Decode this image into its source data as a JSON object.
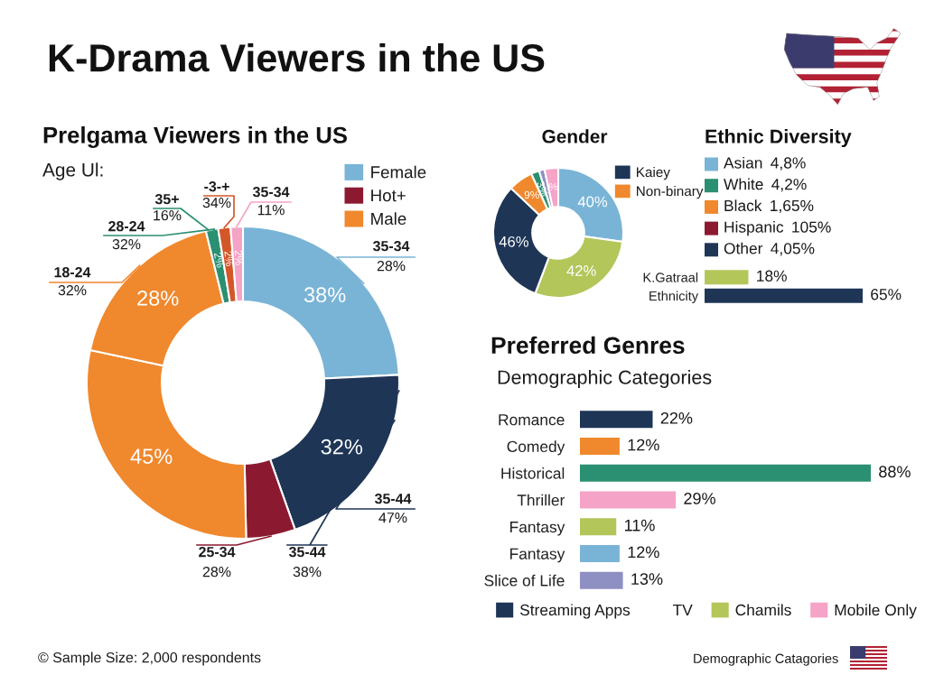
{
  "chart_data": [
    {
      "type": "other",
      "title": "K-Drama Viewers in the US",
      "annotations": [
        "© Sample Size: 2,000 respondents",
        "Demographic Catagories"
      ]
    },
    {
      "type": "donut",
      "title": "Prelgama Viewers in the US",
      "subtitle": "Age Ul:",
      "categories": [
        "Female",
        null,
        "Hot+",
        "Male",
        null,
        null,
        null,
        null
      ],
      "values": [
        38,
        32,
        8,
        45,
        28,
        2,
        2,
        2
      ],
      "colors": [
        "#79b4d6",
        "#1e3556",
        "#8b1a30",
        "#f0882d",
        "#f0882d",
        "#2b8f72",
        "#d4572a",
        "#f5a3c7"
      ],
      "value_labels": [
        "38%",
        "32%",
        null,
        "45%",
        "28%",
        "2%",
        "2%",
        "2%"
      ],
      "legend": "top right",
      "annotations": [
        "35-34\n11%",
        "35-34\n28%",
        "35-44\n47%",
        "35-44\n38%",
        "25-34\n28%",
        "18-24\n32%",
        "28-24\n32%",
        "35+\n16%",
        "-3-+\n34%"
      ]
    },
    {
      "type": "donut",
      "title": "Gender",
      "categories": [
        null,
        null,
        "Kaiey",
        "Non-binary",
        null,
        null,
        null
      ],
      "values": [
        40,
        42,
        46,
        9,
        3,
        2,
        5
      ],
      "colors": [
        "#79b4d6",
        "#b3c65a",
        "#1e3556",
        "#f0882d",
        "#2b8f72",
        "#8e8fc2",
        "#f5a3c7"
      ],
      "value_labels": [
        "40%",
        "42%",
        "46%",
        "9%",
        "3%",
        null,
        "%"
      ],
      "legend": "top right"
    },
    {
      "type": "other",
      "title": "Ethnic Diversity",
      "categories": [
        "Asian",
        "White",
        "Black",
        "Hispanic",
        "Other"
      ],
      "colors": [
        "#79b4d6",
        "#2b8f72",
        "#f0882d",
        "#8b1a30",
        "#1e3556"
      ],
      "value_labels": [
        "4,8%",
        "4,2%",
        "1,65%",
        "105%",
        "4,05%"
      ]
    },
    {
      "type": "bar",
      "orientation": "horizontal",
      "tick_labels": "y",
      "categories": [
        "K.Gatraal",
        "Ethnicity"
      ],
      "values": [
        18,
        65
      ],
      "colors": [
        "#b3c65a",
        "#1e3556"
      ],
      "value_labels": [
        "18%",
        "65%"
      ]
    },
    {
      "type": "bar",
      "orientation": "horizontal",
      "tick_labels": "y",
      "title": "Preferred Genres",
      "subtitle": "Demographic Categories",
      "categories": [
        "Romance",
        "Comedy",
        "Historical",
        "Thriller",
        "Fantasy",
        "Fantasy",
        "Slice of Life"
      ],
      "series": [
        {
          "values": [
            22,
            12,
            88,
            29,
            11,
            12,
            13
          ],
          "colors": [
            "#1e3556",
            "#f0882d",
            "#2b8f72",
            "#f5a3c7",
            "#b3c65a",
            "#79b4d6",
            "#8e8fc2"
          ],
          "value_labels": [
            "22%",
            "12%",
            "88%",
            "29%",
            "11%",
            "12%",
            "13%"
          ]
        },
        {
          "name": "Streaming Apps",
          "color": "#1e3556",
          "values": [
            null,
            null,
            null,
            null,
            null,
            null,
            null
          ]
        },
        {
          "name": "TV",
          "values": [
            null,
            null,
            null,
            null,
            null,
            null,
            null
          ]
        },
        {
          "name": "Chamils",
          "color": "#b3c65a",
          "values": [
            null,
            null,
            null,
            null,
            null,
            null,
            null
          ]
        },
        {
          "name": "Mobile Only",
          "color": "#f5a3c7",
          "values": [
            null,
            null,
            null,
            null,
            null,
            null,
            null
          ]
        }
      ],
      "legend": "bottom"
    }
  ]
}
